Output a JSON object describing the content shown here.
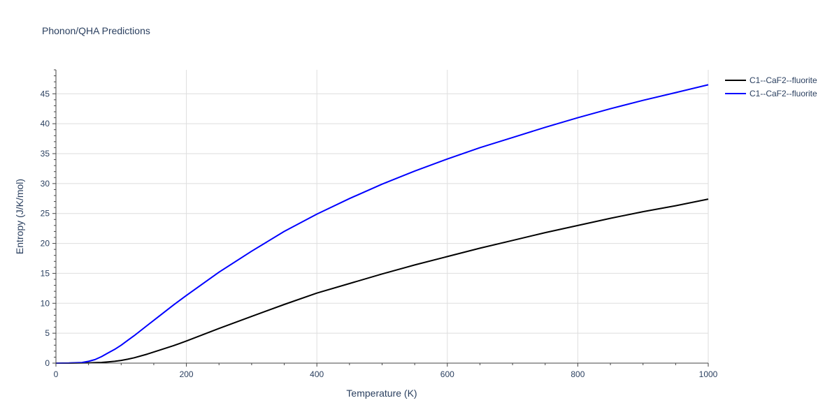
{
  "chart_data": {
    "type": "line",
    "title": "Phonon/QHA Predictions",
    "xlabel": "Temperature (K)",
    "ylabel": "Entropy (J/K/mol)",
    "xlim": [
      0,
      1000
    ],
    "ylim": [
      0,
      49
    ],
    "x_ticks": [
      0,
      200,
      400,
      600,
      800,
      1000
    ],
    "y_ticks": [
      0,
      5,
      10,
      15,
      20,
      25,
      30,
      35,
      40,
      45
    ],
    "grid": true,
    "legend_position": "top-right",
    "series": [
      {
        "name": "C1--CaF2--fluorite",
        "color": "#000000",
        "x": [
          0,
          20,
          40,
          50,
          60,
          70,
          80,
          90,
          100,
          110,
          120,
          140,
          160,
          180,
          200,
          250,
          300,
          350,
          400,
          450,
          500,
          550,
          600,
          650,
          700,
          750,
          800,
          850,
          900,
          950,
          1000
        ],
        "y": [
          0,
          0,
          0.02,
          0.05,
          0.08,
          0.12,
          0.2,
          0.3,
          0.45,
          0.65,
          0.9,
          1.5,
          2.2,
          2.9,
          3.7,
          5.8,
          7.8,
          9.8,
          11.7,
          13.3,
          14.9,
          16.4,
          17.8,
          19.2,
          20.5,
          21.8,
          23.0,
          24.2,
          25.3,
          26.3,
          27.4
        ]
      },
      {
        "name": "C1--CaF2--fluorite",
        "color": "#0000ff",
        "x": [
          0,
          20,
          40,
          50,
          60,
          70,
          80,
          90,
          100,
          110,
          120,
          140,
          160,
          180,
          200,
          250,
          300,
          350,
          400,
          450,
          500,
          550,
          600,
          650,
          700,
          750,
          800,
          850,
          900,
          950,
          1000
        ],
        "y": [
          0,
          0.02,
          0.1,
          0.3,
          0.6,
          1.1,
          1.7,
          2.3,
          3.0,
          3.8,
          4.6,
          6.3,
          8.0,
          9.7,
          11.3,
          15.2,
          18.7,
          22.0,
          24.9,
          27.5,
          29.9,
          32.1,
          34.1,
          36.0,
          37.7,
          39.4,
          41.0,
          42.5,
          43.9,
          45.2,
          46.5
        ]
      }
    ]
  }
}
